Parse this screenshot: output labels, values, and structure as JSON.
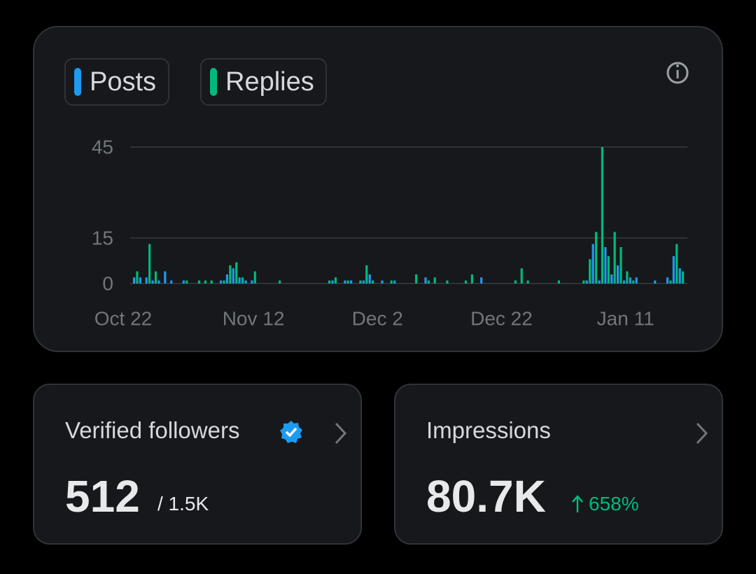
{
  "chart_data": {
    "type": "bar",
    "categories": [
      "Oct 22",
      null,
      null,
      null,
      null,
      null,
      null,
      null,
      null,
      null,
      null,
      null,
      null,
      null,
      null,
      null,
      null,
      null,
      null,
      null,
      null,
      "Nov 12",
      null,
      null,
      null,
      null,
      null,
      null,
      null,
      null,
      null,
      null,
      null,
      null,
      null,
      null,
      null,
      null,
      null,
      null,
      null,
      "Dec 2",
      null,
      null,
      null,
      null,
      null,
      null,
      null,
      null,
      null,
      null,
      null,
      null,
      null,
      null,
      null,
      null,
      null,
      null,
      null,
      "Dec 22",
      null,
      null,
      null,
      null,
      null,
      null,
      null,
      null,
      null,
      null,
      null,
      null,
      null,
      null,
      null,
      null,
      null,
      null,
      null,
      "Jan 11",
      null,
      null,
      null,
      null,
      null,
      null,
      null,
      null,
      null,
      null
    ],
    "series": [
      {
        "name": "Posts",
        "color": "#1d9bf0",
        "values": [
          0,
          0,
          2,
          2,
          2,
          1,
          1,
          4,
          1,
          0,
          1,
          0,
          0,
          0,
          0,
          0,
          1,
          3,
          5,
          2,
          1,
          1,
          0,
          0,
          0,
          0,
          0,
          0,
          0,
          0,
          0,
          0,
          0,
          0,
          1,
          0,
          1,
          1,
          0,
          1,
          3,
          0,
          1,
          0,
          1,
          0,
          0,
          0,
          0,
          2,
          0,
          0,
          0,
          0,
          0,
          0,
          0,
          0,
          2,
          0,
          0,
          0,
          0,
          0,
          0,
          0,
          0,
          0,
          0,
          0,
          0,
          0,
          0,
          0,
          0,
          1,
          13,
          1,
          12,
          3,
          6,
          1,
          2,
          2,
          0,
          0,
          1,
          0,
          2,
          9,
          5,
          0
        ]
      },
      {
        "name": "Replies",
        "color": "#00ba7c",
        "values": [
          0,
          0,
          4,
          0,
          13,
          4,
          0,
          0,
          0,
          0,
          1,
          0,
          1,
          1,
          1,
          0,
          1,
          6,
          7,
          2,
          0,
          4,
          0,
          0,
          0,
          1,
          0,
          0,
          0,
          0,
          0,
          0,
          0,
          1,
          2,
          0,
          1,
          0,
          1,
          6,
          1,
          0,
          0,
          1,
          0,
          0,
          0,
          3,
          0,
          1,
          2,
          0,
          1,
          0,
          0,
          1,
          3,
          0,
          0,
          0,
          0,
          0,
          0,
          1,
          5,
          1,
          0,
          0,
          0,
          0,
          1,
          0,
          0,
          0,
          1,
          8,
          17,
          45,
          9,
          17,
          12,
          4,
          1,
          0,
          0,
          0,
          0,
          0,
          1,
          13,
          4,
          0
        ]
      }
    ],
    "ylim": [
      0,
      45
    ],
    "yticks": [
      0,
      15,
      45
    ],
    "grid": true
  },
  "cards": [
    {
      "title": "Verified followers",
      "value": "512",
      "total": "/ 1.5K"
    },
    {
      "title": "Impressions",
      "value": "80.7K",
      "change": "658%"
    }
  ]
}
